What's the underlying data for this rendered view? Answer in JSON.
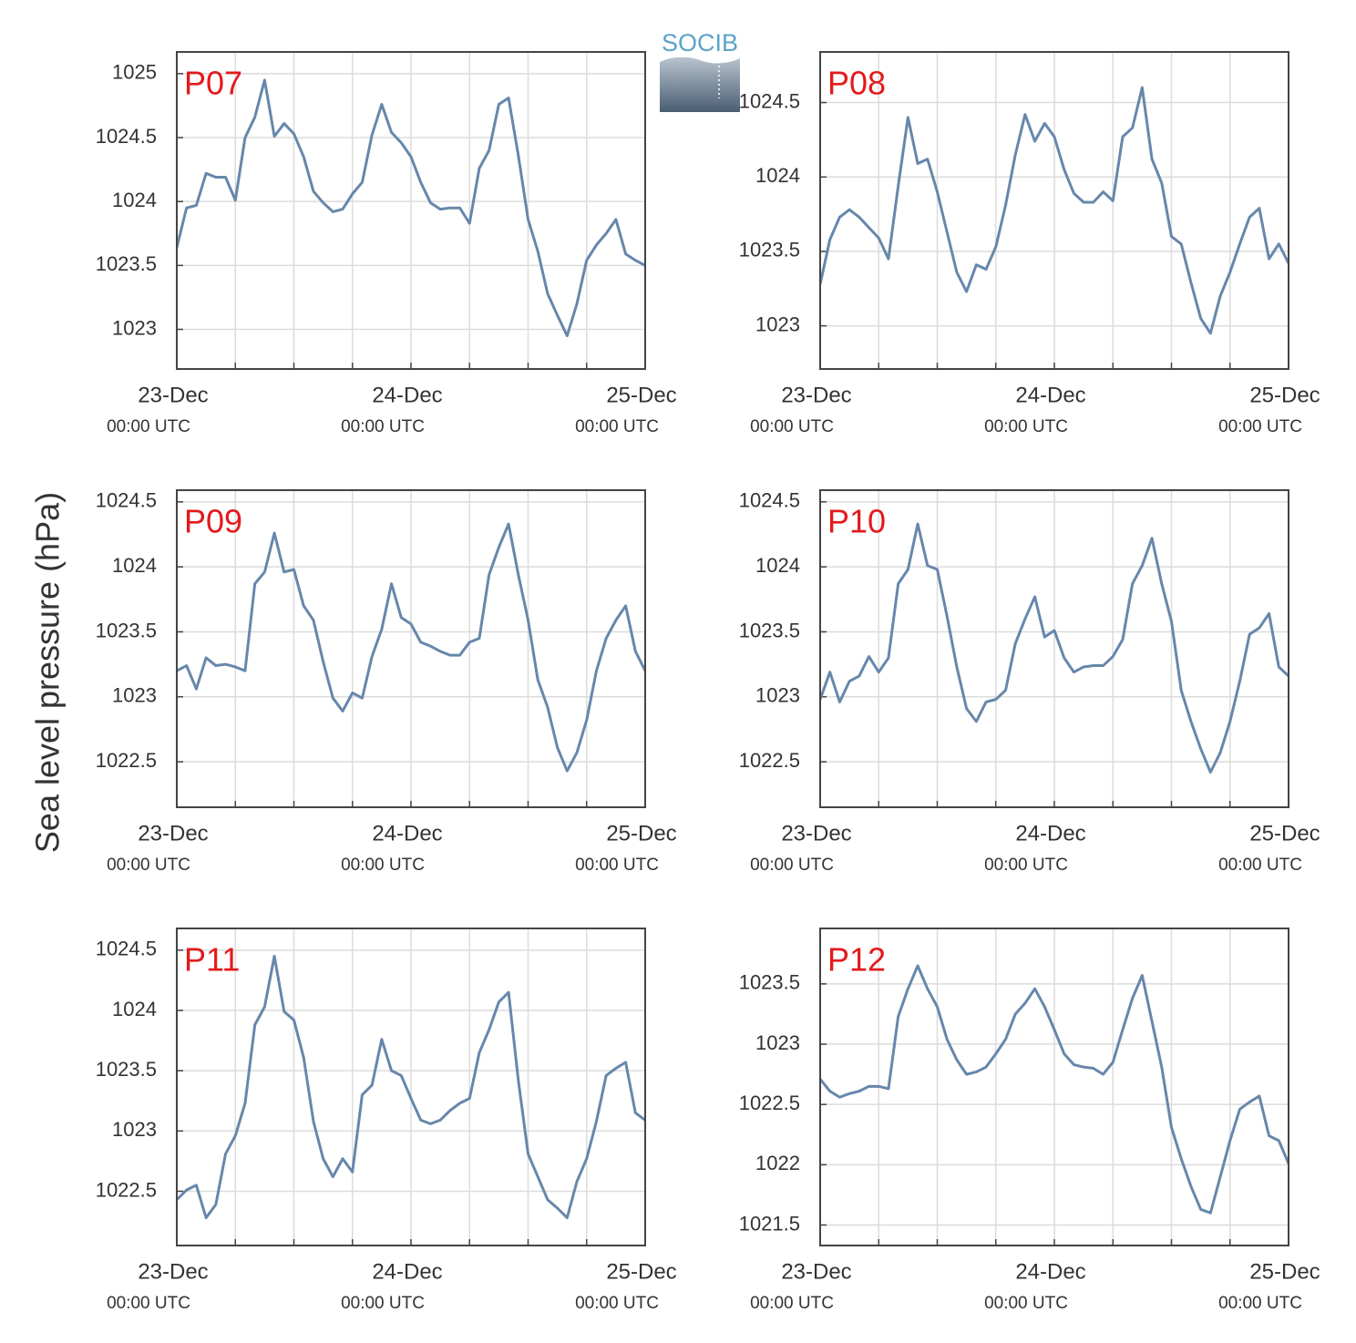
{
  "ylabel": "Sea level pressure (hPa)",
  "logo": "SOCIB",
  "chart_data": [
    {
      "type": "line",
      "title": "P07",
      "x": [
        0,
        1,
        2,
        3,
        4,
        5,
        6,
        7,
        8,
        9,
        10,
        11,
        12,
        13,
        14,
        15,
        16,
        17,
        18,
        19,
        20,
        21,
        22,
        23,
        24,
        25,
        26,
        27,
        28,
        29,
        30,
        31,
        32,
        33,
        34,
        35,
        36,
        37,
        38,
        39,
        40,
        41,
        42,
        43,
        44,
        45,
        46,
        47,
        48
      ],
      "series": [
        {
          "color": "#6787ab",
          "values": [
            1023.64,
            1023.95,
            1023.97,
            1024.22,
            1024.19,
            1024.19,
            1024.01,
            1024.5,
            1024.66,
            1024.95,
            1024.51,
            1024.61,
            1024.53,
            1024.35,
            1024.08,
            1023.99,
            1023.92,
            1023.94,
            1024.06,
            1024.15,
            1024.52,
            1024.76,
            1024.54,
            1024.46,
            1024.35,
            1024.15,
            1023.99,
            1023.94,
            1023.95,
            1023.95,
            1023.83,
            1024.26,
            1024.4,
            1024.76,
            1024.81,
            1024.36,
            1023.86,
            1023.61,
            1023.28,
            1023.11,
            1022.95,
            1023.2,
            1023.54,
            1023.66,
            1023.75,
            1023.86,
            1023.59,
            1023.54,
            1023.5
          ]
        }
      ],
      "xlim": [
        0,
        48
      ],
      "xticks": [
        {
          "value": 0,
          "label": "23-Dec",
          "sublabel": "00:00 UTC"
        },
        {
          "value": 24,
          "label": "24-Dec",
          "sublabel": "00:00 UTC"
        },
        {
          "value": 48,
          "label": "25-Dec",
          "sublabel": "00:00 UTC"
        }
      ],
      "xminor": [
        6,
        12,
        18,
        30,
        36,
        42
      ],
      "ylim": [
        1022.69,
        1025.17
      ],
      "yticks": [
        1023,
        1023.5,
        1024,
        1024.5,
        1025
      ],
      "grid": true,
      "title_color": "#e31a1c"
    },
    {
      "type": "line",
      "title": "P08",
      "x": [
        0,
        1,
        2,
        3,
        4,
        5,
        6,
        7,
        8,
        9,
        10,
        11,
        12,
        13,
        14,
        15,
        16,
        17,
        18,
        19,
        20,
        21,
        22,
        23,
        24,
        25,
        26,
        27,
        28,
        29,
        30,
        31,
        32,
        33,
        34,
        35,
        36,
        37,
        38,
        39,
        40,
        41,
        42,
        43,
        44,
        45,
        46,
        47,
        48
      ],
      "series": [
        {
          "color": "#6787ab",
          "values": [
            1023.28,
            1023.58,
            1023.73,
            1023.78,
            1023.73,
            1023.66,
            1023.59,
            1023.45,
            1023.94,
            1024.4,
            1024.09,
            1024.12,
            1023.9,
            1023.63,
            1023.36,
            1023.23,
            1023.41,
            1023.38,
            1023.53,
            1023.81,
            1024.15,
            1024.42,
            1024.24,
            1024.36,
            1024.27,
            1024.05,
            1023.89,
            1023.83,
            1023.83,
            1023.9,
            1023.84,
            1024.27,
            1024.33,
            1024.6,
            1024.12,
            1023.96,
            1023.6,
            1023.55,
            1023.29,
            1023.05,
            1022.95,
            1023.2,
            1023.36,
            1023.55,
            1023.73,
            1023.79,
            1023.45,
            1023.55,
            1023.42
          ]
        }
      ],
      "xlim": [
        0,
        48
      ],
      "xticks": [
        {
          "value": 0,
          "label": "23-Dec",
          "sublabel": "00:00 UTC"
        },
        {
          "value": 24,
          "label": "24-Dec",
          "sublabel": "00:00 UTC"
        },
        {
          "value": 48,
          "label": "25-Dec",
          "sublabel": "00:00 UTC"
        }
      ],
      "xminor": [
        6,
        12,
        18,
        30,
        36,
        42
      ],
      "ylim": [
        1022.71,
        1024.84
      ],
      "yticks": [
        1023,
        1023.5,
        1024,
        1024.5
      ],
      "grid": true,
      "title_color": "#e31a1c"
    },
    {
      "type": "line",
      "title": "P09",
      "x": [
        0,
        1,
        2,
        3,
        4,
        5,
        6,
        7,
        8,
        9,
        10,
        11,
        12,
        13,
        14,
        15,
        16,
        17,
        18,
        19,
        20,
        21,
        22,
        23,
        24,
        25,
        26,
        27,
        28,
        29,
        30,
        31,
        32,
        33,
        34,
        35,
        36,
        37,
        38,
        39,
        40,
        41,
        42,
        43,
        44,
        45,
        46,
        47,
        48
      ],
      "series": [
        {
          "color": "#6787ab",
          "values": [
            1023.2,
            1023.24,
            1023.06,
            1023.3,
            1023.24,
            1023.25,
            1023.23,
            1023.2,
            1023.87,
            1023.96,
            1024.26,
            1023.96,
            1023.98,
            1023.7,
            1023.59,
            1023.27,
            1022.99,
            1022.89,
            1023.03,
            1022.99,
            1023.31,
            1023.52,
            1023.87,
            1023.61,
            1023.56,
            1023.42,
            1023.39,
            1023.35,
            1023.32,
            1023.32,
            1023.42,
            1023.45,
            1023.94,
            1024.15,
            1024.33,
            1023.94,
            1023.59,
            1023.13,
            1022.92,
            1022.61,
            1022.43,
            1022.57,
            1022.82,
            1023.2,
            1023.45,
            1023.59,
            1023.7,
            1023.35,
            1023.2
          ]
        }
      ],
      "xlim": [
        0,
        48
      ],
      "xticks": [
        {
          "value": 0,
          "label": "23-Dec",
          "sublabel": "00:00 UTC"
        },
        {
          "value": 24,
          "label": "24-Dec",
          "sublabel": "00:00 UTC"
        },
        {
          "value": 48,
          "label": "25-Dec",
          "sublabel": "00:00 UTC"
        }
      ],
      "xminor": [
        6,
        12,
        18,
        30,
        36,
        42
      ],
      "ylim": [
        1022.15,
        1024.59
      ],
      "yticks": [
        1022.5,
        1023,
        1023.5,
        1024,
        1024.5
      ],
      "grid": true,
      "title_color": "#e31a1c"
    },
    {
      "type": "line",
      "title": "P10",
      "x": [
        0,
        1,
        2,
        3,
        4,
        5,
        6,
        7,
        8,
        9,
        10,
        11,
        12,
        13,
        14,
        15,
        16,
        17,
        18,
        19,
        20,
        21,
        22,
        23,
        24,
        25,
        26,
        27,
        28,
        29,
        30,
        31,
        32,
        33,
        34,
        35,
        36,
        37,
        38,
        39,
        40,
        41,
        42,
        43,
        44,
        45,
        46,
        47,
        48
      ],
      "series": [
        {
          "color": "#6787ab",
          "values": [
            1022.98,
            1023.19,
            1022.96,
            1023.12,
            1023.16,
            1023.31,
            1023.19,
            1023.3,
            1023.87,
            1023.98,
            1024.33,
            1024.01,
            1023.98,
            1023.62,
            1023.23,
            1022.91,
            1022.81,
            1022.96,
            1022.98,
            1023.05,
            1023.41,
            1023.6,
            1023.77,
            1023.46,
            1023.51,
            1023.3,
            1023.19,
            1023.23,
            1023.24,
            1023.24,
            1023.31,
            1023.44,
            1023.87,
            1024.01,
            1024.22,
            1023.87,
            1023.58,
            1023.05,
            1022.81,
            1022.6,
            1022.42,
            1022.57,
            1022.81,
            1023.12,
            1023.48,
            1023.53,
            1023.64,
            1023.23,
            1023.16
          ]
        }
      ],
      "xlim": [
        0,
        48
      ],
      "xticks": [
        {
          "value": 0,
          "label": "23-Dec",
          "sublabel": "00:00 UTC"
        },
        {
          "value": 24,
          "label": "24-Dec",
          "sublabel": "00:00 UTC"
        },
        {
          "value": 48,
          "label": "25-Dec",
          "sublabel": "00:00 UTC"
        }
      ],
      "xminor": [
        6,
        12,
        18,
        30,
        36,
        42
      ],
      "ylim": [
        1022.15,
        1024.59
      ],
      "yticks": [
        1022.5,
        1023,
        1023.5,
        1024,
        1024.5
      ],
      "grid": true,
      "title_color": "#e31a1c"
    },
    {
      "type": "line",
      "title": "P11",
      "x": [
        0,
        1,
        2,
        3,
        4,
        5,
        6,
        7,
        8,
        9,
        10,
        11,
        12,
        13,
        14,
        15,
        16,
        17,
        18,
        19,
        20,
        21,
        22,
        23,
        24,
        25,
        26,
        27,
        28,
        29,
        30,
        31,
        32,
        33,
        34,
        35,
        36,
        37,
        38,
        39,
        40,
        41,
        42,
        43,
        44,
        45,
        46,
        47,
        48
      ],
      "series": [
        {
          "color": "#6787ab",
          "values": [
            1022.43,
            1022.51,
            1022.55,
            1022.28,
            1022.39,
            1022.81,
            1022.96,
            1023.23,
            1023.88,
            1024.03,
            1024.45,
            1023.99,
            1023.92,
            1023.61,
            1023.08,
            1022.77,
            1022.62,
            1022.77,
            1022.66,
            1023.3,
            1023.38,
            1023.76,
            1023.5,
            1023.46,
            1023.27,
            1023.09,
            1023.06,
            1023.09,
            1023.17,
            1023.23,
            1023.27,
            1023.65,
            1023.84,
            1024.07,
            1024.15,
            1023.42,
            1022.81,
            1022.62,
            1022.43,
            1022.36,
            1022.28,
            1022.58,
            1022.77,
            1023.08,
            1023.46,
            1023.52,
            1023.57,
            1023.15,
            1023.09
          ]
        }
      ],
      "xlim": [
        0,
        48
      ],
      "xticks": [
        {
          "value": 0,
          "label": "23-Dec",
          "sublabel": "00:00 UTC"
        },
        {
          "value": 24,
          "label": "24-Dec",
          "sublabel": "00:00 UTC"
        },
        {
          "value": 48,
          "label": "25-Dec",
          "sublabel": "00:00 UTC"
        }
      ],
      "xminor": [
        6,
        12,
        18,
        30,
        36,
        42
      ],
      "ylim": [
        1022.05,
        1024.68
      ],
      "yticks": [
        1022.5,
        1023,
        1023.5,
        1024,
        1024.5
      ],
      "grid": true,
      "title_color": "#e31a1c"
    },
    {
      "type": "line",
      "title": "P12",
      "x": [
        0,
        1,
        2,
        3,
        4,
        5,
        6,
        7,
        8,
        9,
        10,
        11,
        12,
        13,
        14,
        15,
        16,
        17,
        18,
        19,
        20,
        21,
        22,
        23,
        24,
        25,
        26,
        27,
        28,
        29,
        30,
        31,
        32,
        33,
        34,
        35,
        36,
        37,
        38,
        39,
        40,
        41,
        42,
        43,
        44,
        45,
        46,
        47,
        48
      ],
      "series": [
        {
          "color": "#6787ab",
          "values": [
            1022.71,
            1022.61,
            1022.56,
            1022.59,
            1022.61,
            1022.65,
            1022.65,
            1022.63,
            1023.23,
            1023.46,
            1023.65,
            1023.46,
            1023.31,
            1023.04,
            1022.87,
            1022.75,
            1022.77,
            1022.81,
            1022.92,
            1023.04,
            1023.25,
            1023.34,
            1023.46,
            1023.31,
            1023.12,
            1022.92,
            1022.83,
            1022.81,
            1022.8,
            1022.75,
            1022.85,
            1023.12,
            1023.38,
            1023.57,
            1023.19,
            1022.81,
            1022.31,
            1022.05,
            1021.82,
            1021.63,
            1021.6,
            1021.9,
            1022.2,
            1022.46,
            1022.52,
            1022.57,
            1022.24,
            1022.2,
            1022.01
          ]
        }
      ],
      "xlim": [
        0,
        48
      ],
      "xticks": [
        {
          "value": 0,
          "label": "23-Dec",
          "sublabel": "00:00 UTC"
        },
        {
          "value": 24,
          "label": "24-Dec",
          "sublabel": "00:00 UTC"
        },
        {
          "value": 48,
          "label": "25-Dec",
          "sublabel": "00:00 UTC"
        }
      ],
      "xminor": [
        6,
        12,
        18,
        30,
        36,
        42
      ],
      "ylim": [
        1021.33,
        1023.96
      ],
      "yticks": [
        1021.5,
        1022,
        1022.5,
        1023,
        1023.5
      ],
      "grid": true,
      "title_color": "#e31a1c"
    }
  ]
}
